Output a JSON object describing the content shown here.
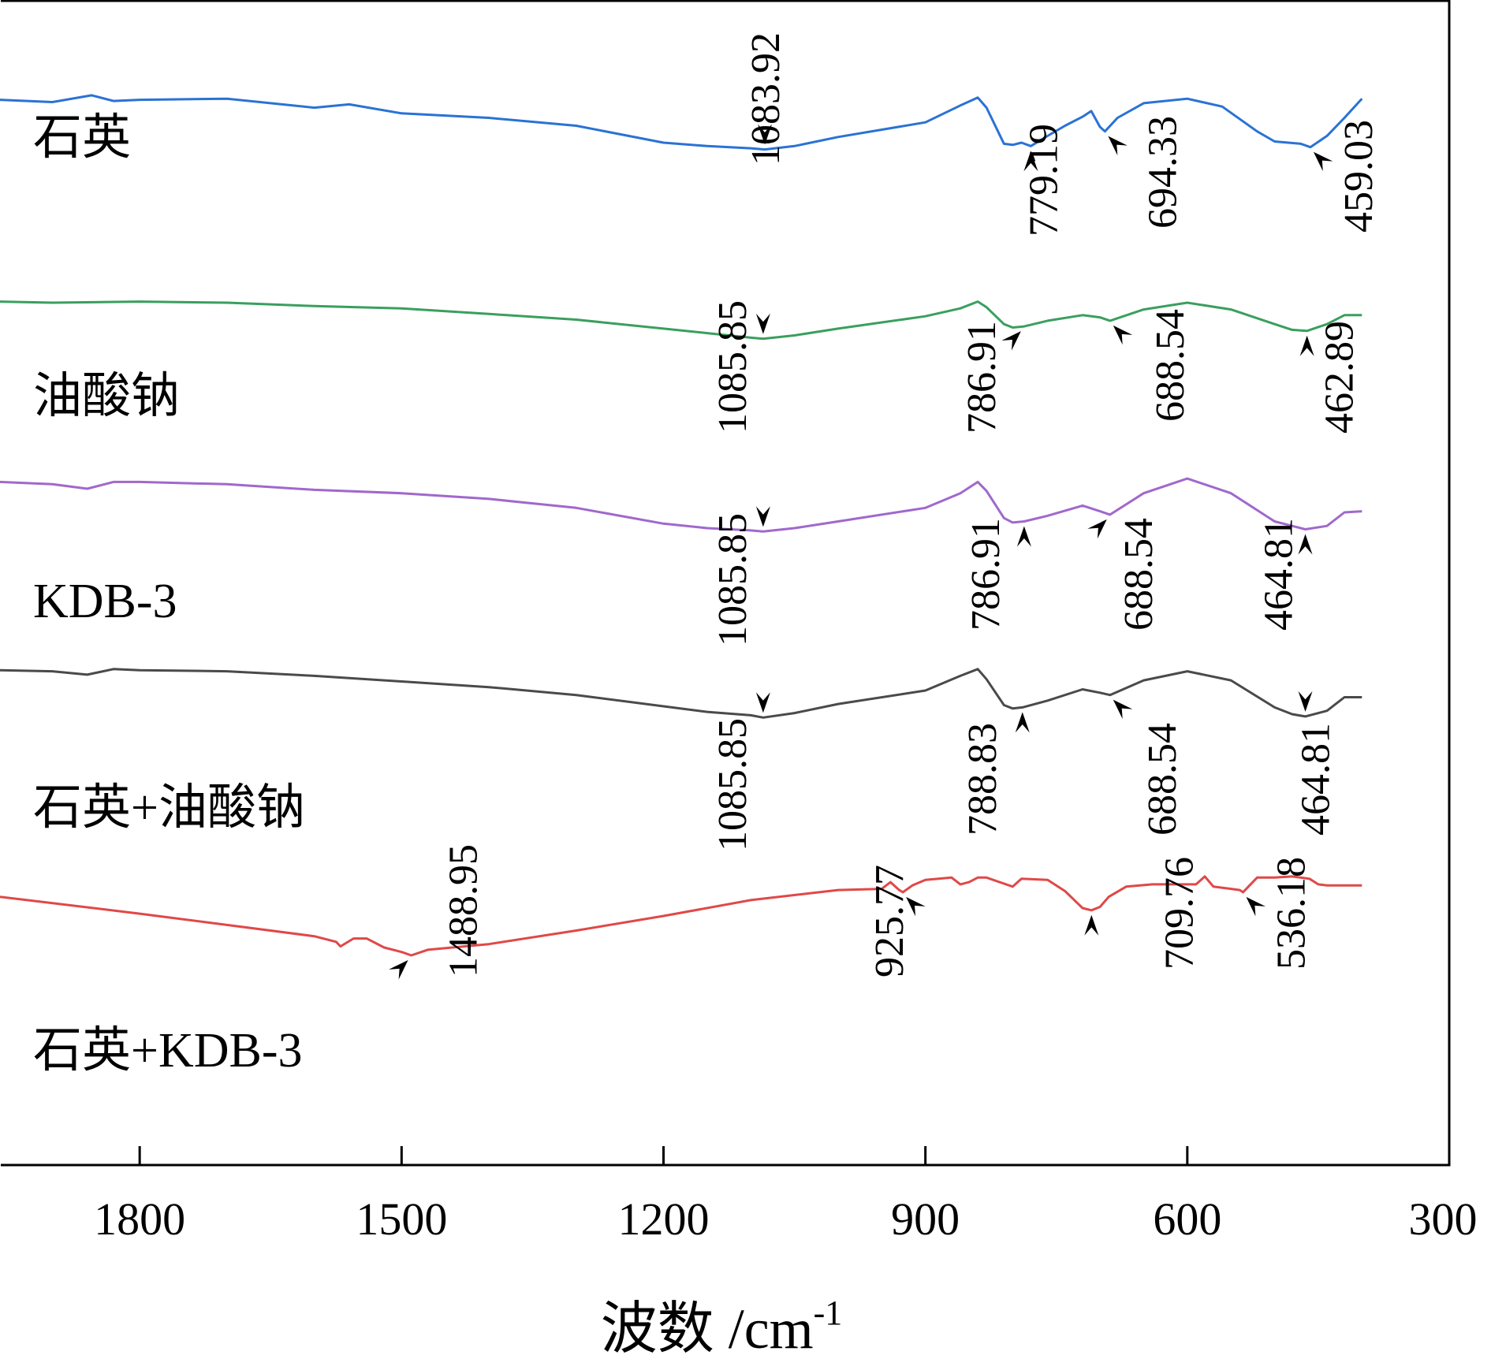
{
  "chart_data": {
    "type": "line",
    "title": "",
    "xlabel": "波数 /cm",
    "xlabel_superscript": "-1",
    "ylabel": "",
    "xlim": [
      1960,
      300
    ],
    "x_reversed": true,
    "xticks": [
      1800,
      1500,
      1200,
      900,
      600,
      300
    ],
    "xtick_labels": [
      "1800",
      "1500",
      "1200",
      "900",
      "600",
      "300"
    ],
    "grid": false,
    "legend": "inline-left",
    "series": [
      {
        "name": "石英",
        "color": "#2a72d5",
        "x": [
          1960,
          1900,
          1855,
          1830,
          1800,
          1700,
          1600,
          1560,
          1500,
          1400,
          1300,
          1200,
          1150,
          1100,
          1083.92,
          1050,
          1000,
          900,
          860,
          840,
          830,
          810,
          800,
          790,
          779.19,
          760,
          740,
          720,
          710,
          700,
          694.33,
          680,
          650,
          600,
          560,
          520,
          500,
          470,
          459.03,
          440,
          420,
          400
        ],
        "y": [
          95.2,
          95.0,
          95.6,
          95.1,
          95.2,
          95.3,
          94.5,
          94.8,
          94.0,
          93.6,
          92.9,
          91.4,
          91.1,
          90.9,
          90.8,
          91.1,
          91.9,
          93.2,
          94.7,
          95.4,
          94.5,
          91.3,
          91.2,
          91.4,
          91.1,
          92.0,
          92.9,
          93.7,
          94.2,
          92.8,
          92.4,
          93.6,
          94.9,
          95.3,
          94.6,
          92.4,
          91.5,
          91.3,
          91.0,
          92.0,
          93.6,
          95.3
        ]
      },
      {
        "name": "油酸钠",
        "color": "#3a9f5e",
        "x": [
          1960,
          1900,
          1800,
          1700,
          1600,
          1500,
          1400,
          1300,
          1200,
          1150,
          1100,
          1085.85,
          1050,
          1000,
          900,
          860,
          840,
          830,
          810,
          800,
          786.91,
          760,
          720,
          700,
          688.54,
          650,
          600,
          550,
          500,
          480,
          462.89,
          440,
          420,
          400
        ],
        "y": [
          77.3,
          77.2,
          77.3,
          77.2,
          76.9,
          76.7,
          76.2,
          75.7,
          74.9,
          74.5,
          74.1,
          74.0,
          74.3,
          74.9,
          76.0,
          76.7,
          77.3,
          76.8,
          75.3,
          75.0,
          75.1,
          75.6,
          76.1,
          75.9,
          75.6,
          76.6,
          77.2,
          76.6,
          75.3,
          74.8,
          74.7,
          75.3,
          76.1,
          76.1
        ]
      },
      {
        "name": "KDB-3",
        "color": "#a068cc",
        "x": [
          1960,
          1900,
          1860,
          1830,
          1800,
          1700,
          1600,
          1500,
          1400,
          1300,
          1200,
          1150,
          1100,
          1085.85,
          1050,
          1000,
          900,
          860,
          840,
          830,
          810,
          800,
          786.91,
          760,
          720,
          700,
          688.54,
          650,
          600,
          550,
          500,
          480,
          464.81,
          440,
          420,
          400
        ],
        "y": [
          61.3,
          61.1,
          60.7,
          61.3,
          61.3,
          61.1,
          60.6,
          60.3,
          59.8,
          59.0,
          57.6,
          57.2,
          57.0,
          56.9,
          57.2,
          57.8,
          59.0,
          60.3,
          61.3,
          60.5,
          58.1,
          57.7,
          57.8,
          58.3,
          59.2,
          58.7,
          58.4,
          60.3,
          61.6,
          60.3,
          57.8,
          57.4,
          57.1,
          57.4,
          58.6,
          58.7
        ]
      },
      {
        "name": "石英+油酸钠",
        "color": "#4a4a4a",
        "x": [
          1960,
          1900,
          1860,
          1830,
          1800,
          1700,
          1600,
          1500,
          1400,
          1300,
          1200,
          1150,
          1100,
          1085.85,
          1050,
          1000,
          900,
          860,
          840,
          830,
          810,
          800,
          788.83,
          760,
          720,
          700,
          688.54,
          650,
          600,
          550,
          500,
          480,
          464.81,
          440,
          420,
          400
        ],
        "y": [
          44.6,
          44.5,
          44.2,
          44.7,
          44.6,
          44.5,
          44.1,
          43.6,
          43.1,
          42.4,
          41.4,
          40.9,
          40.6,
          40.4,
          40.8,
          41.6,
          42.8,
          44.1,
          44.7,
          43.8,
          41.5,
          41.2,
          41.3,
          41.9,
          42.9,
          42.6,
          42.4,
          43.7,
          44.5,
          43.7,
          41.3,
          40.7,
          40.5,
          41.0,
          42.2,
          42.2
        ]
      },
      {
        "name": "石英+KDB-3",
        "color": "#e04848",
        "x": [
          1960,
          1800,
          1700,
          1600,
          1575,
          1570,
          1555,
          1540,
          1520,
          1500,
          1488.95,
          1470,
          1400,
          1300,
          1200,
          1100,
          1000,
          950,
          940,
          930,
          925.77,
          915,
          900,
          870,
          860,
          850,
          840,
          830,
          800,
          790,
          760,
          740,
          720,
          709.76,
          700,
          690,
          670,
          640,
          590,
          580,
          570,
          550,
          540,
          536.18,
          530,
          520,
          500,
          480,
          460,
          450,
          440,
          400
        ],
        "y": [
          24.5,
          23.0,
          22.0,
          21.0,
          20.5,
          20.1,
          20.8,
          20.8,
          20.0,
          19.6,
          19.3,
          19.8,
          20.3,
          21.5,
          22.8,
          24.2,
          25.1,
          25.2,
          25.8,
          25.1,
          24.9,
          25.5,
          26.0,
          26.2,
          25.6,
          25.8,
          26.2,
          26.2,
          25.4,
          26.1,
          26.0,
          25.0,
          23.5,
          23.3,
          23.6,
          24.5,
          25.4,
          25.6,
          25.6,
          26.3,
          25.4,
          25.2,
          25.1,
          24.9,
          25.4,
          26.2,
          26.2,
          26.3,
          26.1,
          25.6,
          25.5,
          25.5
        ]
      }
    ],
    "annotations": [
      {
        "series": "石英",
        "label": "1083.92",
        "x": 1083.92
      },
      {
        "series": "石英",
        "label": "779.19",
        "x": 779.19
      },
      {
        "series": "石英",
        "label": "694.33",
        "x": 694.33
      },
      {
        "series": "石英",
        "label": "459.03",
        "x": 459.03
      },
      {
        "series": "油酸钠",
        "label": "1085.85",
        "x": 1085.85
      },
      {
        "series": "油酸钠",
        "label": "786.91",
        "x": 786.91
      },
      {
        "series": "油酸钠",
        "label": "688.54",
        "x": 688.54
      },
      {
        "series": "油酸钠",
        "label": "462.89",
        "x": 462.89
      },
      {
        "series": "KDB-3",
        "label": "1085.85",
        "x": 1085.85
      },
      {
        "series": "KDB-3",
        "label": "786.91",
        "x": 786.91
      },
      {
        "series": "KDB-3",
        "label": "688.54",
        "x": 688.54
      },
      {
        "series": "KDB-3",
        "label": "464.81",
        "x": 464.81
      },
      {
        "series": "石英+油酸钠",
        "label": "1085.85",
        "x": 1085.85
      },
      {
        "series": "石英+油酸钠",
        "label": "788.83",
        "x": 788.83
      },
      {
        "series": "石英+油酸钠",
        "label": "688.54",
        "x": 688.54
      },
      {
        "series": "石英+油酸钠",
        "label": "464.81",
        "x": 464.81
      },
      {
        "series": "石英+KDB-3",
        "label": "1488.95",
        "x": 1488.95
      },
      {
        "series": "石英+KDB-3",
        "label": "925.77",
        "x": 925.77
      },
      {
        "series": "石英+KDB-3",
        "label": "709.76",
        "x": 709.76
      },
      {
        "series": "石英+KDB-3",
        "label": "536.18",
        "x": 536.18
      }
    ]
  }
}
